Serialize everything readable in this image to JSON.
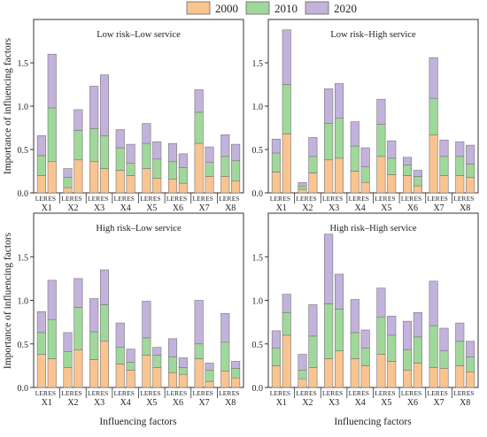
{
  "legend": {
    "items": [
      {
        "label": "2000",
        "color": "#f9c48f"
      },
      {
        "label": "2010",
        "color": "#9fd89a"
      },
      {
        "label": "2020",
        "color": "#c3b2dc"
      }
    ]
  },
  "axis_titles": {
    "ylabel": "Importance of influencing factors",
    "xlabel": "Influencing factors"
  },
  "chart_data": [
    {
      "type": "bar",
      "title": "Low risk–Low service",
      "ylim": [
        0,
        2
      ],
      "yticks": [
        "0.0",
        "0.5",
        "1.0",
        "1.5"
      ],
      "factors": [
        "X1",
        "X2",
        "X3",
        "X4",
        "X5",
        "X6",
        "X7",
        "X8"
      ],
      "sub_categories": [
        "LER",
        "ES"
      ],
      "series": [
        {
          "name": "2000",
          "values": [
            0.2,
            0.36,
            0.06,
            0.38,
            0.36,
            0.28,
            0.26,
            0.2,
            0.28,
            0.17,
            0.16,
            0.11,
            0.57,
            0.19,
            0.19,
            0.14
          ]
        },
        {
          "name": "2010",
          "values": [
            0.23,
            0.62,
            0.12,
            0.34,
            0.38,
            0.38,
            0.26,
            0.14,
            0.29,
            0.22,
            0.2,
            0.18,
            0.36,
            0.16,
            0.23,
            0.23
          ]
        },
        {
          "name": "2020",
          "values": [
            0.23,
            0.62,
            0.1,
            0.24,
            0.49,
            0.7,
            0.21,
            0.22,
            0.23,
            0.2,
            0.21,
            0.16,
            0.26,
            0.18,
            0.25,
            0.19
          ]
        }
      ]
    },
    {
      "type": "bar",
      "title": "Low risk–High service",
      "ylim": [
        0,
        2
      ],
      "yticks": [
        "0.0",
        "0.5",
        "1.0",
        "1.5"
      ],
      "factors": [
        "X1",
        "X2",
        "X3",
        "X4",
        "X5",
        "X6",
        "X7",
        "X8"
      ],
      "sub_categories": [
        "LER",
        "ES"
      ],
      "series": [
        {
          "name": "2000",
          "values": [
            0.24,
            0.68,
            0.04,
            0.23,
            0.38,
            0.4,
            0.25,
            0.12,
            0.42,
            0.21,
            0.2,
            0.08,
            0.67,
            0.2,
            0.2,
            0.18
          ]
        },
        {
          "name": "2010",
          "values": [
            0.22,
            0.57,
            0.04,
            0.19,
            0.42,
            0.46,
            0.29,
            0.18,
            0.37,
            0.19,
            0.12,
            0.11,
            0.42,
            0.22,
            0.22,
            0.15
          ]
        },
        {
          "name": "2020",
          "values": [
            0.16,
            0.63,
            0.04,
            0.22,
            0.4,
            0.4,
            0.28,
            0.22,
            0.29,
            0.2,
            0.09,
            0.07,
            0.47,
            0.19,
            0.17,
            0.22
          ]
        }
      ]
    },
    {
      "type": "bar",
      "title": "High risk–Low service",
      "ylim": [
        0,
        2
      ],
      "yticks": [
        "0.0",
        "0.5",
        "1.0",
        "1.5"
      ],
      "factors": [
        "X1",
        "X2",
        "X3",
        "X4",
        "X5",
        "X6",
        "X7",
        "X8"
      ],
      "sub_categories": [
        "LER",
        "ES"
      ],
      "series": [
        {
          "name": "2000",
          "values": [
            0.38,
            0.33,
            0.23,
            0.43,
            0.32,
            0.53,
            0.27,
            0.2,
            0.37,
            0.23,
            0.17,
            0.15,
            0.33,
            0.07,
            0.19,
            0.11
          ]
        },
        {
          "name": "2010",
          "values": [
            0.25,
            0.45,
            0.18,
            0.49,
            0.32,
            0.42,
            0.19,
            0.09,
            0.2,
            0.14,
            0.18,
            0.08,
            0.17,
            0.13,
            0.33,
            0.11
          ]
        },
        {
          "name": "2020",
          "values": [
            0.24,
            0.45,
            0.22,
            0.33,
            0.38,
            0.4,
            0.28,
            0.15,
            0.42,
            0.09,
            0.21,
            0.11,
            0.5,
            0.08,
            0.33,
            0.08
          ]
        }
      ]
    },
    {
      "type": "bar",
      "title": "High risk–High service",
      "ylim": [
        0,
        2
      ],
      "yticks": [
        "0.0",
        "0.5",
        "1.0",
        "1.5"
      ],
      "factors": [
        "X1",
        "X2",
        "X3",
        "X4",
        "X5",
        "X6",
        "X7",
        "X8"
      ],
      "sub_categories": [
        "LER",
        "ES"
      ],
      "series": [
        {
          "name": "2000",
          "values": [
            0.25,
            0.6,
            0.1,
            0.23,
            0.33,
            0.42,
            0.33,
            0.25,
            0.38,
            0.3,
            0.2,
            0.28,
            0.23,
            0.22,
            0.25,
            0.18
          ]
        },
        {
          "name": "2010",
          "values": [
            0.2,
            0.26,
            0.1,
            0.36,
            0.63,
            0.48,
            0.3,
            0.2,
            0.43,
            0.3,
            0.23,
            0.3,
            0.48,
            0.2,
            0.28,
            0.17
          ]
        },
        {
          "name": "2020",
          "values": [
            0.2,
            0.21,
            0.18,
            0.36,
            0.8,
            0.4,
            0.38,
            0.21,
            0.33,
            0.22,
            0.33,
            0.28,
            0.51,
            0.26,
            0.21,
            0.18
          ]
        }
      ]
    }
  ]
}
